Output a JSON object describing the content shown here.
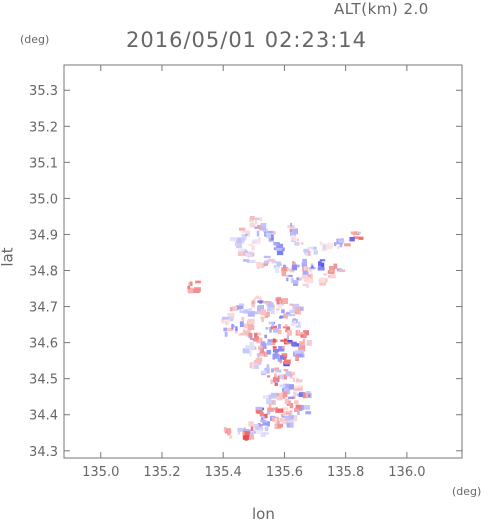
{
  "header": {
    "alt_label": "ALT(km) 2.0",
    "timestamp": "2016/05/01 02:23:14"
  },
  "chart_data": {
    "type": "heatmap",
    "title": "2016/05/01 02:23:14",
    "subtitle": "ALT(km) 2.0",
    "xlabel": "lon",
    "ylabel": "lat",
    "xunit": "(deg)",
    "yunit": "(deg)",
    "xlim": [
      134.88,
      136.18
    ],
    "ylim": [
      34.28,
      35.37
    ],
    "xticks": [
      "135.0",
      "135.2",
      "135.4",
      "135.6",
      "135.8",
      "136.0"
    ],
    "yticks": [
      "34.3",
      "34.4",
      "34.5",
      "34.6",
      "34.7",
      "34.8",
      "34.9",
      "35.0",
      "35.1",
      "35.2",
      "35.3"
    ],
    "grid": false,
    "colors": {
      "positive": "#e84040",
      "negative": "#4b4bf0",
      "axis": "#777777"
    },
    "cells": [
      [
        135.5,
        34.94,
        0.3
      ],
      [
        135.52,
        34.92,
        -0.5
      ],
      [
        135.47,
        34.91,
        0.4
      ],
      [
        135.55,
        34.9,
        -0.6
      ],
      [
        135.44,
        34.89,
        -0.3
      ],
      [
        135.5,
        34.88,
        0.2
      ],
      [
        135.58,
        34.87,
        -0.7
      ],
      [
        135.62,
        34.92,
        0.5
      ],
      [
        135.64,
        34.89,
        0.3
      ],
      [
        135.68,
        34.86,
        -0.4
      ],
      [
        135.72,
        34.87,
        0.2
      ],
      [
        135.78,
        34.88,
        -0.5
      ],
      [
        135.83,
        34.9,
        0.7
      ],
      [
        135.46,
        34.86,
        0.3
      ],
      [
        135.48,
        34.84,
        -0.4
      ],
      [
        135.52,
        34.83,
        0.5
      ],
      [
        135.56,
        34.82,
        -0.3
      ],
      [
        135.6,
        34.81,
        0.6
      ],
      [
        135.64,
        34.82,
        -0.6
      ],
      [
        135.67,
        34.8,
        0.4
      ],
      [
        135.7,
        34.82,
        -0.8
      ],
      [
        135.73,
        34.78,
        0.3
      ],
      [
        135.76,
        34.81,
        0.5
      ],
      [
        135.62,
        34.78,
        -0.5
      ],
      [
        135.66,
        34.77,
        0.2
      ],
      [
        135.3,
        34.76,
        0.6
      ],
      [
        135.5,
        34.72,
        0.5
      ],
      [
        135.53,
        34.71,
        0.7
      ],
      [
        135.56,
        34.7,
        -0.3
      ],
      [
        135.58,
        34.72,
        0.8
      ],
      [
        135.48,
        34.69,
        -0.4
      ],
      [
        135.52,
        34.68,
        0.6
      ],
      [
        135.6,
        34.68,
        -0.6
      ],
      [
        135.63,
        34.7,
        0.4
      ],
      [
        135.44,
        34.7,
        -0.5
      ],
      [
        135.4,
        34.67,
        0.3
      ],
      [
        135.47,
        34.66,
        0.5
      ],
      [
        135.55,
        34.65,
        -0.7
      ],
      [
        135.59,
        34.64,
        0.6
      ],
      [
        135.63,
        34.66,
        -0.4
      ],
      [
        135.65,
        34.63,
        0.7
      ],
      [
        135.42,
        34.64,
        -0.6
      ],
      [
        135.46,
        34.63,
        0.4
      ],
      [
        135.5,
        34.62,
        0.6
      ],
      [
        135.54,
        34.61,
        -0.5
      ],
      [
        135.58,
        34.6,
        0.8
      ],
      [
        135.62,
        34.61,
        -0.8
      ],
      [
        135.66,
        34.6,
        0.5
      ],
      [
        135.48,
        34.59,
        -0.3
      ],
      [
        135.52,
        34.58,
        0.7
      ],
      [
        135.56,
        34.57,
        -0.6
      ],
      [
        135.6,
        34.56,
        0.9
      ],
      [
        135.64,
        34.57,
        -0.5
      ],
      [
        135.5,
        34.55,
        0.4
      ],
      [
        135.54,
        34.53,
        -0.4
      ],
      [
        135.58,
        34.52,
        0.6
      ],
      [
        135.62,
        34.51,
        0.4
      ],
      [
        135.56,
        34.5,
        0.7
      ],
      [
        135.6,
        34.48,
        -0.5
      ],
      [
        135.64,
        34.47,
        0.3
      ],
      [
        135.66,
        34.46,
        -0.7
      ],
      [
        135.58,
        34.46,
        0.5
      ],
      [
        135.54,
        34.45,
        -0.3
      ],
      [
        135.62,
        34.44,
        0.6
      ],
      [
        135.65,
        34.42,
        -0.6
      ],
      [
        135.6,
        34.41,
        0.4
      ],
      [
        135.56,
        34.42,
        0.8
      ],
      [
        135.52,
        34.41,
        0.7
      ],
      [
        135.54,
        34.39,
        -0.5
      ],
      [
        135.58,
        34.38,
        0.5
      ],
      [
        135.5,
        34.37,
        0.6
      ],
      [
        135.46,
        34.36,
        -0.4
      ],
      [
        135.42,
        34.355,
        0.5
      ],
      [
        135.48,
        34.35,
        0.8
      ],
      [
        135.52,
        34.36,
        -0.3
      ],
      [
        135.6,
        34.4,
        0.3
      ],
      [
        135.62,
        34.39,
        -0.4
      ]
    ]
  }
}
